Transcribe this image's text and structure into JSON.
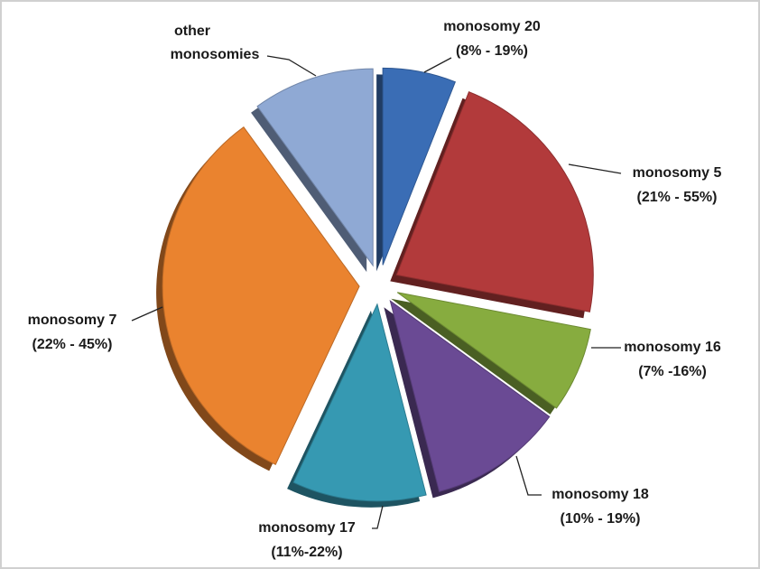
{
  "chart_data": {
    "type": "pie",
    "categories": [
      "monosomy 20",
      "monosomy 5",
      "monosomy 16",
      "monosomy 18",
      "monosomy 17",
      "monosomy 7",
      "other monosomies"
    ],
    "ranges": [
      "(8% - 19%)",
      "(21% - 55%)",
      "(7% -16%)",
      "(10% - 19%)",
      "(11%-22%)",
      "(22% - 45%)",
      null
    ],
    "values": [
      6,
      22,
      7,
      11,
      11,
      33,
      10
    ],
    "colors": [
      "#3a6db5",
      "#b23a3b",
      "#87ac3f",
      "#6a4a94",
      "#3699b2",
      "#ea832f",
      "#8fa9d4"
    ]
  }
}
